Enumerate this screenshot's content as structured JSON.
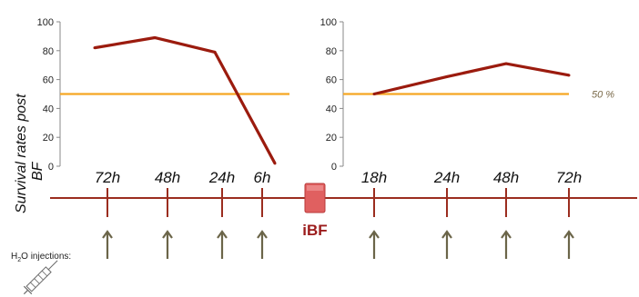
{
  "y_label_line1": "Survival rates post",
  "y_label_line2": "BF",
  "injections_label": "H",
  "injections_label_sub": "2",
  "injections_label_rest": "O injections:",
  "ibf_label": "iBF",
  "colors": {
    "line": "#9b1b0e",
    "reference": "#f5a623",
    "timeline": "#9b2d1f",
    "marker_box": "#e06060",
    "arrow": "#6b6549",
    "axis": "#888888"
  },
  "icons": [
    "syringe-icon",
    "up-arrow-icon"
  ],
  "chart_data": [
    {
      "type": "line",
      "categories": [
        "72h",
        "48h",
        "24h",
        "6h"
      ],
      "series": [
        {
          "values": [
            82,
            89,
            79,
            2
          ]
        }
      ],
      "reference_line": {
        "value": 50,
        "label": ""
      },
      "ylim": [
        0,
        100
      ],
      "yticks": [
        0,
        20,
        40,
        60,
        80,
        100
      ],
      "grid": false
    },
    {
      "type": "line",
      "categories": [
        "18h",
        "24h",
        "48h",
        "72h"
      ],
      "series": [
        {
          "values": [
            50,
            62,
            71,
            63
          ]
        }
      ],
      "reference_line": {
        "value": 50,
        "label": "50 %"
      },
      "ylim": [
        0,
        100
      ],
      "yticks": [
        0,
        20,
        40,
        60,
        80,
        100
      ],
      "grid": false
    }
  ]
}
